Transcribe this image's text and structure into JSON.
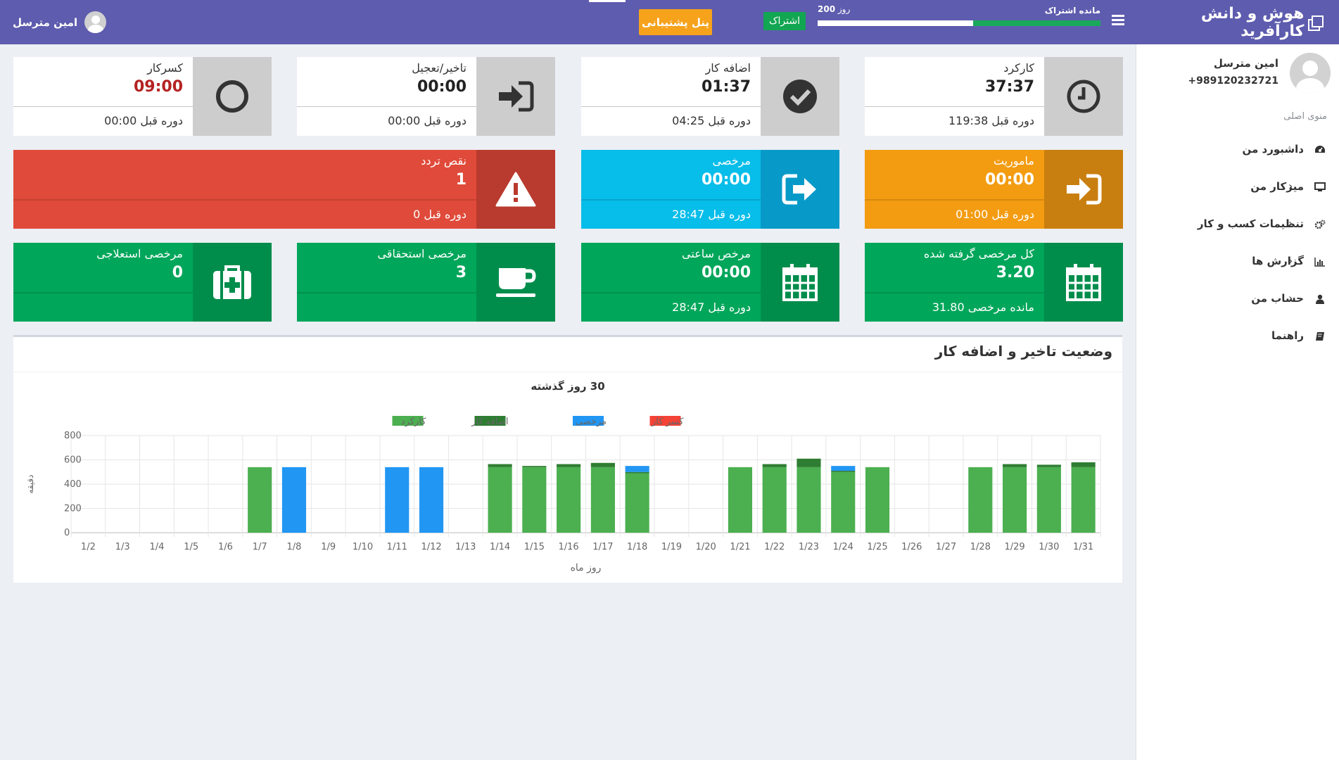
{
  "header": {
    "brand": "هوش و دانش کارآفرید",
    "subscription_label": "مانده اشتراک",
    "subscription_days_value": "200",
    "subscription_days_unit": "روز",
    "subscription_fraction": 0.45,
    "subscription_badge": "اشتراک",
    "support_button": "پنل پشتیبانی",
    "user_name": "امین مترسل"
  },
  "sidebar": {
    "profile_name": "امین مترسل",
    "profile_phone": "+989120232721",
    "menu_title": "منوی اصلی",
    "items": [
      {
        "label": "داشبورد من",
        "icon": "dashboard-icon"
      },
      {
        "label": "میزکار من",
        "icon": "desktop-icon"
      },
      {
        "label": "تنظیمات کسب و کار",
        "icon": "gears-icon"
      },
      {
        "label": "گزارش ها",
        "icon": "bar-chart-icon"
      },
      {
        "label": "حساب من",
        "icon": "user-icon"
      },
      {
        "label": "راهنما",
        "icon": "book-icon"
      }
    ]
  },
  "cards": {
    "karkard": {
      "label": "کارکرد",
      "value": "37:37",
      "foot": "دوره قبل 119:38",
      "icon": "clock-icon"
    },
    "ezafe": {
      "label": "اضافه کار",
      "value": "01:37",
      "foot": "دوره قبل 04:25",
      "icon": "check-circle-icon"
    },
    "takhir": {
      "label": "تاخیر/تعجیل",
      "value": "00:00",
      "foot": "دوره قبل 00:00",
      "icon": "sign-in-icon"
    },
    "kasr": {
      "label": "کسرکار",
      "value": "09:00",
      "foot": "دوره قبل 00:00",
      "icon": "circle-icon"
    },
    "mamooriat": {
      "label": "ماموریت",
      "value": "00:00",
      "foot": "دوره قبل 01:00",
      "icon": "sign-in-icon"
    },
    "morakhasi": {
      "label": "مرخصی",
      "value": "00:00",
      "foot": "دوره قبل 28:47",
      "icon": "sign-out-icon"
    },
    "naghs": {
      "label": "نقص تردد",
      "value": "1",
      "foot": "دوره قبل 0",
      "icon": "warning-icon"
    },
    "kol": {
      "label": "کل مرخصی گرفته شده",
      "value": "3.20",
      "foot": "مانده مرخصی 31.80",
      "icon": "calendar-icon"
    },
    "saati": {
      "label": "مرخص ساعتی",
      "value": "00:00",
      "foot": "دوره قبل 28:47",
      "icon": "calendar-icon"
    },
    "estehghaghi": {
      "label": "مرخصی استحقاقی",
      "value": "3",
      "foot": "",
      "icon": "coffee-icon"
    },
    "esteleji": {
      "label": "مرخصی استعلاجی",
      "value": "0",
      "foot": "",
      "icon": "medkit-icon"
    }
  },
  "panel": {
    "title": "وضعیت تاخیر و اضافه کار"
  },
  "colors": {
    "header": "#5e5cae",
    "karkard": "#4caf50",
    "ezafe": "#2e7d32",
    "morakhasi": "#2196f3",
    "kasr": "#f44336"
  },
  "chart_data": {
    "type": "bar",
    "stacked": true,
    "title": "30 روز گذشته",
    "xlabel": "روز ماه",
    "ylabel": "دقیقه",
    "ylim": [
      0,
      800
    ],
    "yticks": [
      0,
      200,
      400,
      600,
      800
    ],
    "legend_position": "top",
    "categories": [
      "1/2",
      "1/3",
      "1/4",
      "1/5",
      "1/6",
      "1/7",
      "1/8",
      "1/9",
      "1/10",
      "1/11",
      "1/12",
      "1/13",
      "1/14",
      "1/15",
      "1/16",
      "1/17",
      "1/18",
      "1/19",
      "1/20",
      "1/21",
      "1/22",
      "1/23",
      "1/24",
      "1/25",
      "1/26",
      "1/27",
      "1/28",
      "1/29",
      "1/30",
      "1/31"
    ],
    "series": [
      {
        "name": "کارکرد",
        "color": "#4caf50",
        "values": [
          0,
          0,
          0,
          0,
          0,
          540,
          0,
          0,
          0,
          0,
          0,
          0,
          540,
          540,
          540,
          540,
          490,
          0,
          0,
          540,
          540,
          540,
          500,
          540,
          0,
          0,
          540,
          540,
          540,
          540
        ]
      },
      {
        "name": "اضافه کار",
        "color": "#2e7d32",
        "values": [
          0,
          0,
          0,
          0,
          0,
          0,
          0,
          0,
          0,
          0,
          0,
          0,
          25,
          10,
          25,
          35,
          10,
          0,
          0,
          0,
          25,
          70,
          10,
          0,
          0,
          0,
          0,
          25,
          20,
          40
        ]
      },
      {
        "name": "مرخصی",
        "color": "#2196f3",
        "values": [
          0,
          0,
          0,
          0,
          0,
          0,
          540,
          0,
          0,
          540,
          540,
          0,
          0,
          0,
          0,
          0,
          50,
          0,
          0,
          0,
          0,
          0,
          40,
          0,
          0,
          0,
          0,
          0,
          0,
          0
        ]
      },
      {
        "name": "کسر کار",
        "color": "#f44336",
        "values": [
          0,
          0,
          0,
          0,
          0,
          0,
          0,
          0,
          0,
          0,
          0,
          0,
          0,
          0,
          0,
          0,
          0,
          0,
          0,
          0,
          0,
          0,
          0,
          0,
          0,
          0,
          0,
          0,
          0,
          0
        ]
      }
    ]
  }
}
